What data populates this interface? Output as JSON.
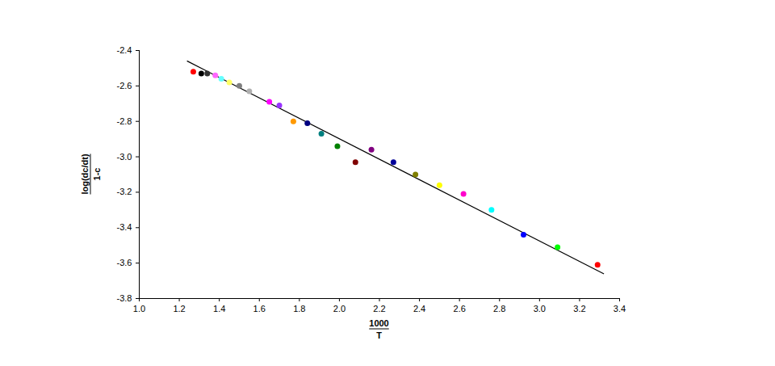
{
  "chart_data": {
    "type": "scatter",
    "xlabel": {
      "numerator": "1000",
      "denominator": "T"
    },
    "ylabel": {
      "numerator": "log(dc/dt)",
      "denominator": "1-c"
    },
    "xlim": [
      1.0,
      3.4
    ],
    "xticks": [
      {
        "value": 1.0,
        "label": "1.0"
      },
      1.2,
      1.4,
      1.6,
      1.8,
      {
        "value": 2.0,
        "label": "2.0"
      },
      2.2,
      2.4,
      2.6,
      2.8,
      {
        "value": 3.0,
        "label": "3.0"
      },
      3.2,
      3.4
    ],
    "ylim": [
      -3.8,
      -2.4
    ],
    "yticks": [
      -3.8,
      -3.6,
      -3.4,
      -3.2,
      {
        "value": -3.0,
        "label": "-3.0"
      },
      -2.8,
      -2.6,
      -2.4
    ],
    "grid": false,
    "marker": "circle",
    "points": {
      "x": [
        1.27,
        1.31,
        1.34,
        1.38,
        1.41,
        1.45,
        1.5,
        1.55,
        1.65,
        1.7,
        1.77,
        1.84,
        1.91,
        1.99,
        2.08,
        2.16,
        2.27,
        2.38,
        2.5,
        2.62,
        2.76,
        2.92,
        3.09,
        3.29
      ],
      "y": [
        -2.52,
        -2.53,
        -2.53,
        -2.54,
        -2.56,
        -2.58,
        -2.6,
        -2.63,
        -2.69,
        -2.71,
        -2.8,
        -2.81,
        -2.87,
        -2.94,
        -3.03,
        -2.96,
        -3.03,
        -3.1,
        -3.16,
        -3.21,
        -3.3,
        -3.44,
        -3.51,
        -3.61
      ],
      "colors": [
        "#ff0000",
        "#000000",
        "#333333",
        "#ff66ff",
        "#66ffff",
        "#ffff66",
        "#808080",
        "#b0b0b0",
        "#ff00ff",
        "#9933ff",
        "#ff9900",
        "#000080",
        "#008080",
        "#008000",
        "#800000",
        "#800080",
        "#000099",
        "#808000",
        "#ffff00",
        "#ff00cc",
        "#00ffff",
        "#0000ff",
        "#00ff00",
        "#ff0000"
      ]
    },
    "fit_line": {
      "x": [
        1.24,
        3.32
      ],
      "y": [
        -2.46,
        -3.66
      ],
      "color": "#000000",
      "line_style": "solid"
    }
  }
}
